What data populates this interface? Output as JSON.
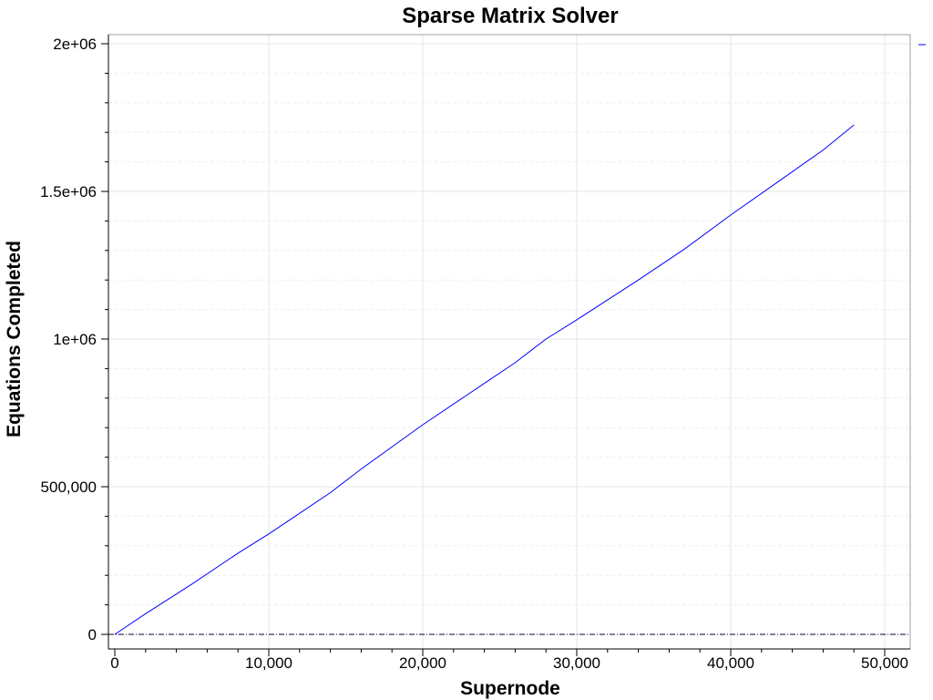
{
  "chart_data": {
    "type": "line",
    "title": "Sparse Matrix Solver",
    "xlabel": "Supernode",
    "ylabel": "Equations Completed",
    "xlim": [
      -500,
      51000
    ],
    "ylim": [
      -5000,
      2030000
    ],
    "x_ticks": [
      0,
      10000,
      20000,
      30000,
      40000,
      50000
    ],
    "x_tick_labels": [
      "0",
      "10,000",
      "20,000",
      "30,000",
      "40,000",
      "50,000"
    ],
    "y_ticks": [
      0,
      500000,
      1000000,
      1500000,
      2000000
    ],
    "y_tick_labels": [
      "0",
      "500,000",
      "1e+06",
      "1.5e+06",
      "2e+06"
    ],
    "grid": true,
    "legend": "top-right",
    "series": [
      {
        "color": "#0000ff",
        "x": [
          0,
          2000,
          5000,
          8000,
          10000,
          12000,
          14000,
          16000,
          20000,
          24000,
          26000,
          28000,
          30000,
          34000,
          37000,
          40000,
          43000,
          46000,
          48000
        ],
        "y": [
          0,
          70000,
          170000,
          275000,
          340000,
          410000,
          480000,
          560000,
          710000,
          850000,
          920000,
          1000000,
          1065000,
          1200000,
          1305000,
          1420000,
          1530000,
          1640000,
          1725000
        ]
      }
    ],
    "baseline": {
      "y": 0,
      "style": "dash-dot",
      "color": "#000033"
    },
    "colors": {
      "series": "#0000ff",
      "grid": "#e6e6e6",
      "axis": "#000000",
      "frame": "#a0a0a0"
    }
  }
}
